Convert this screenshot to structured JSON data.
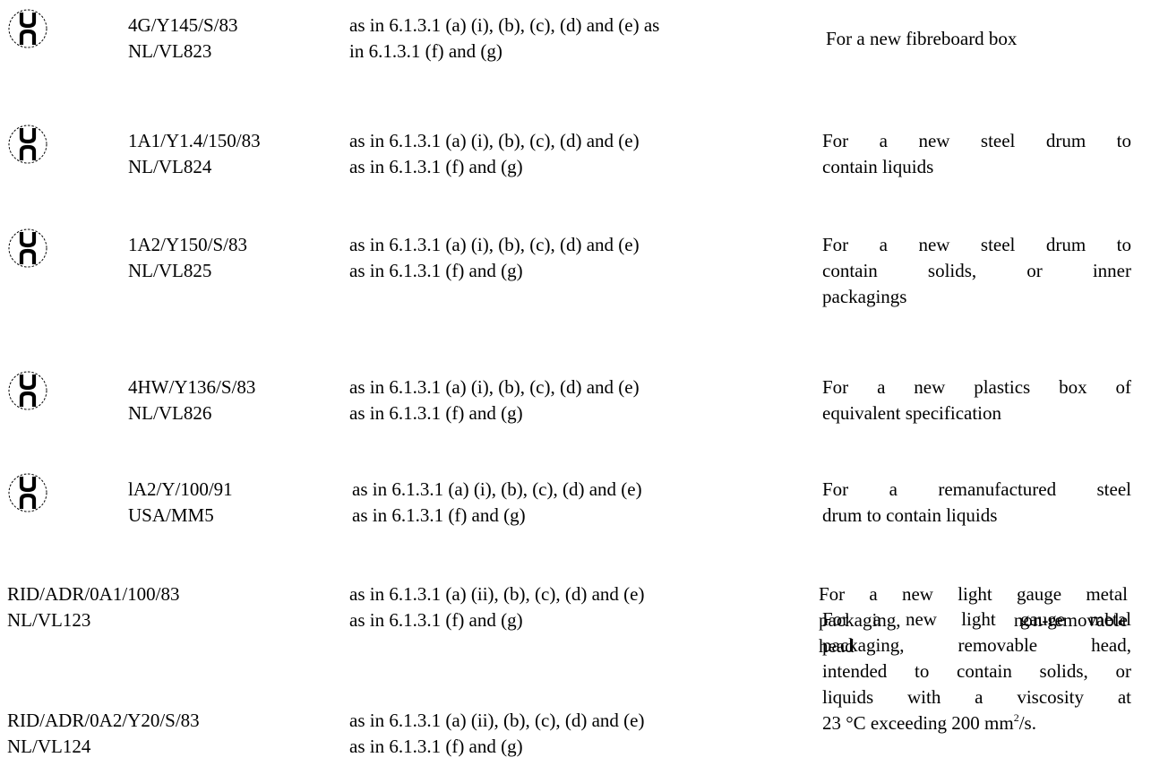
{
  "logo": {
    "icon": "un-packaging-mark-icon",
    "logo_text": "un"
  },
  "rows": [
    {
      "code": [
        "4G/Y145/S/83",
        "NL/VL823"
      ],
      "ref": [
        "as in 6.1.3.1 (a) (i), (b), (c), (d) and (e) as",
        "in 6.1.3.1 (f) and (g)"
      ],
      "desc": [
        "For a new fibreboard box"
      ]
    },
    {
      "code": [
        "1A1/Y1.4/150/83",
        "NL/VL824"
      ],
      "ref": [
        "as in 6.1.3.1 (a) (i), (b), (c), (d) and (e)",
        "as in 6.1.3.1 (f) and (g)"
      ],
      "desc": [
        "For a new steel drum to",
        "contain liquids"
      ]
    },
    {
      "code": [
        "1A2/Y150/S/83",
        "NL/VL825"
      ],
      "ref": [
        "as in 6.1.3.1 (a) (i), (b), (c), (d) and (e)",
        "as in 6.1.3.1 (f) and (g)"
      ],
      "desc": [
        "For a new steel drum to",
        "contain solids, or inner",
        "packagings"
      ]
    },
    {
      "code": [
        "4HW/Y136/S/83",
        "NL/VL826"
      ],
      "ref": [
        "as in 6.1.3.1 (a) (i), (b), (c), (d) and (e)",
        "as in 6.1.3.1 (f) and (g)"
      ],
      "desc": [
        "For a new plastics box of",
        "equivalent specification"
      ]
    },
    {
      "code": [
        "lA2/Y/100/91",
        "USA/MM5"
      ],
      "ref": [
        "as in 6.1.3.1 (a) (i), (b), (c), (d) and (e)",
        "as in 6.1.3.1 (f) and (g)"
      ],
      "desc": [
        "For a remanufactured steel",
        "drum to contain liquids"
      ]
    },
    {
      "code": [
        "RID/ADR/0A1/100/83",
        "NL/VL123"
      ],
      "ref": [
        "as in 6.1.3.1 (a) (ii), (b), (c), (d) and (e)",
        "as in 6.1.3.1 (f) and (g)"
      ],
      "desc": [
        "For a new light gauge metal",
        "packaging, non-removable",
        "head"
      ]
    },
    {
      "code": [
        "RID/ADR/0A2/Y20/S/83",
        "NL/VL124"
      ],
      "ref": [
        "as in 6.1.3.1 (a) (ii), (b), (c), (d) and (e)",
        "as in 6.1.3.1 (f) and (g)"
      ],
      "desc": [
        "For a new light gauge metal",
        "packaging, removable head,",
        "intended to contain solids, or",
        "liquids with a viscosity at"
      ],
      "desc_last_before_sup": "23 °C exceeding 200 mm",
      "desc_sup": "2",
      "desc_last_after_sup": "/s."
    }
  ]
}
